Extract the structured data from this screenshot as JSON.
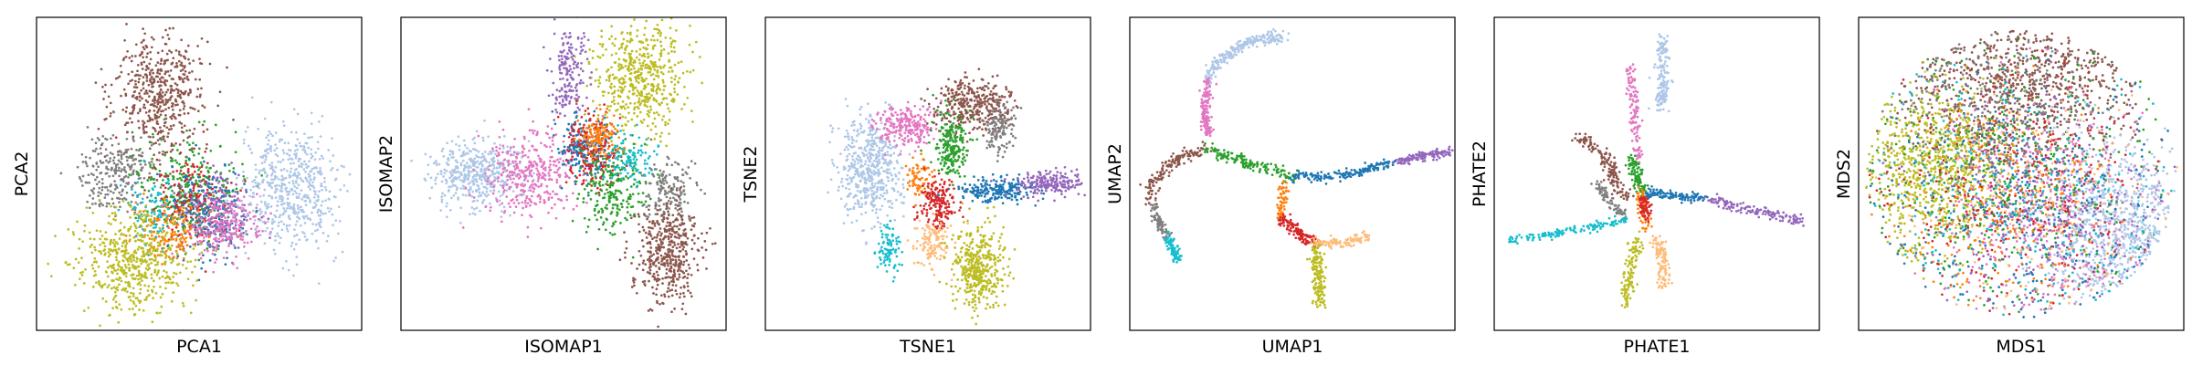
{
  "figure": {
    "palette": [
      "#1f77b4",
      "#ff7f0e",
      "#2ca02c",
      "#d62728",
      "#9467bd",
      "#8c564b",
      "#e377c2",
      "#7f7f7f",
      "#bcbd22",
      "#17becf",
      "#aec7e8",
      "#ffbb78"
    ]
  },
  "chart_data": [
    {
      "type": "scatter",
      "xlabel": "PCA1",
      "ylabel": "PCA2",
      "ticks": "none",
      "clusters": [
        {
          "color": "#8c564b",
          "center": [
            0.38,
            0.25
          ],
          "spread": [
            0.07,
            0.1
          ],
          "n": 520
        },
        {
          "color": "#7f7f7f",
          "center": [
            0.25,
            0.5
          ],
          "spread": [
            0.06,
            0.06
          ],
          "n": 260
        },
        {
          "color": "#2ca02c",
          "center": [
            0.47,
            0.55
          ],
          "spread": [
            0.08,
            0.08
          ],
          "n": 300
        },
        {
          "color": "#1f77b4",
          "center": [
            0.52,
            0.62
          ],
          "spread": [
            0.06,
            0.07
          ],
          "n": 260
        },
        {
          "color": "#d62728",
          "center": [
            0.48,
            0.58
          ],
          "spread": [
            0.06,
            0.07
          ],
          "n": 160
        },
        {
          "color": "#9467bd",
          "center": [
            0.56,
            0.62
          ],
          "spread": [
            0.05,
            0.06
          ],
          "n": 160
        },
        {
          "color": "#e377c2",
          "center": [
            0.58,
            0.66
          ],
          "spread": [
            0.06,
            0.06
          ],
          "n": 220
        },
        {
          "color": "#ff7f0e",
          "center": [
            0.4,
            0.68
          ],
          "spread": [
            0.05,
            0.05
          ],
          "n": 140
        },
        {
          "color": "#17becf",
          "center": [
            0.35,
            0.62
          ],
          "spread": [
            0.04,
            0.05
          ],
          "n": 80
        },
        {
          "color": "#bcbd22",
          "center": [
            0.3,
            0.78
          ],
          "spread": [
            0.08,
            0.08
          ],
          "n": 560
        },
        {
          "color": "#aec7e8",
          "center": [
            0.78,
            0.55
          ],
          "spread": [
            0.07,
            0.1
          ],
          "n": 560
        }
      ]
    },
    {
      "type": "scatter",
      "xlabel": "ISOMAP1",
      "ylabel": "ISOMAP2",
      "ticks": "none",
      "clusters": [
        {
          "color": "#bcbd22",
          "center": [
            0.74,
            0.2
          ],
          "spread": [
            0.07,
            0.08
          ],
          "n": 520
        },
        {
          "color": "#9467bd",
          "center": [
            0.52,
            0.18
          ],
          "spread": [
            0.03,
            0.07
          ],
          "n": 180
        },
        {
          "color": "#aec7e8",
          "center": [
            0.23,
            0.5
          ],
          "spread": [
            0.07,
            0.05
          ],
          "n": 460
        },
        {
          "color": "#e377c2",
          "center": [
            0.4,
            0.5
          ],
          "spread": [
            0.07,
            0.07
          ],
          "n": 360
        },
        {
          "color": "#1f77b4",
          "center": [
            0.57,
            0.42
          ],
          "spread": [
            0.04,
            0.05
          ],
          "n": 220
        },
        {
          "color": "#d62728",
          "center": [
            0.59,
            0.42
          ],
          "spread": [
            0.04,
            0.06
          ],
          "n": 180
        },
        {
          "color": "#2ca02c",
          "center": [
            0.65,
            0.55
          ],
          "spread": [
            0.05,
            0.07
          ],
          "n": 240
        },
        {
          "color": "#ff7f0e",
          "center": [
            0.61,
            0.38
          ],
          "spread": [
            0.03,
            0.04
          ],
          "n": 120
        },
        {
          "color": "#17becf",
          "center": [
            0.7,
            0.45
          ],
          "spread": [
            0.04,
            0.04
          ],
          "n": 100
        },
        {
          "color": "#7f7f7f",
          "center": [
            0.82,
            0.55
          ],
          "spread": [
            0.04,
            0.05
          ],
          "n": 160
        },
        {
          "color": "#8c564b",
          "center": [
            0.82,
            0.75
          ],
          "spread": [
            0.05,
            0.08
          ],
          "n": 440
        }
      ]
    },
    {
      "type": "scatter",
      "xlabel": "TSNE1",
      "ylabel": "TSNE2",
      "ticks": "none",
      "clusters": [
        {
          "color": "#aec7e8",
          "center": [
            0.32,
            0.48
          ],
          "spread": [
            0.05,
            0.08
          ],
          "n": 520
        },
        {
          "color": "#e377c2",
          "center": [
            0.43,
            0.35
          ],
          "spread": [
            0.05,
            0.03
          ],
          "n": 240
        },
        {
          "color": "#8c564b",
          "center": [
            0.64,
            0.28
          ],
          "spread": [
            0.06,
            0.04
          ],
          "n": 360
        },
        {
          "color": "#7f7f7f",
          "center": [
            0.72,
            0.36
          ],
          "spread": [
            0.02,
            0.04
          ],
          "n": 120
        },
        {
          "color": "#2ca02c",
          "center": [
            0.57,
            0.41
          ],
          "spread": [
            0.03,
            0.05
          ],
          "n": 220
        },
        {
          "color": "#1f77b4",
          "center": [
            0.71,
            0.55
          ],
          "spread": [
            0.06,
            0.02
          ],
          "n": 220
        },
        {
          "color": "#9467bd",
          "center": [
            0.87,
            0.53
          ],
          "spread": [
            0.05,
            0.02
          ],
          "n": 200
        },
        {
          "color": "#ff7f0e",
          "center": [
            0.47,
            0.52
          ],
          "spread": [
            0.02,
            0.03
          ],
          "n": 80
        },
        {
          "color": "#d62728",
          "center": [
            0.53,
            0.6
          ],
          "spread": [
            0.03,
            0.04
          ],
          "n": 180
        },
        {
          "color": "#ffbb78",
          "center": [
            0.51,
            0.72
          ],
          "spread": [
            0.03,
            0.04
          ],
          "n": 120
        },
        {
          "color": "#17becf",
          "center": [
            0.38,
            0.73
          ],
          "spread": [
            0.02,
            0.04
          ],
          "n": 90
        },
        {
          "color": "#bcbd22",
          "center": [
            0.65,
            0.8
          ],
          "spread": [
            0.04,
            0.07
          ],
          "n": 420
        }
      ]
    },
    {
      "type": "scatter",
      "xlabel": "UMAP1",
      "ylabel": "UMAP2",
      "ticks": "none",
      "paths": [
        {
          "color": "#aec7e8",
          "points": [
            [
              0.47,
              0.06
            ],
            [
              0.36,
              0.08
            ],
            [
              0.27,
              0.14
            ],
            [
              0.24,
              0.2
            ]
          ],
          "n": 220,
          "jitter": 0.01
        },
        {
          "color": "#e377c2",
          "points": [
            [
              0.24,
              0.2
            ],
            [
              0.23,
              0.28
            ],
            [
              0.24,
              0.38
            ]
          ],
          "n": 140,
          "jitter": 0.008
        },
        {
          "color": "#8c564b",
          "points": [
            [
              0.22,
              0.42
            ],
            [
              0.12,
              0.47
            ],
            [
              0.06,
              0.54
            ],
            [
              0.07,
              0.6
            ]
          ],
          "n": 160,
          "jitter": 0.01
        },
        {
          "color": "#7f7f7f",
          "points": [
            [
              0.07,
              0.6
            ],
            [
              0.09,
              0.66
            ],
            [
              0.12,
              0.7
            ]
          ],
          "n": 80,
          "jitter": 0.008
        },
        {
          "color": "#17becf",
          "points": [
            [
              0.12,
              0.7
            ],
            [
              0.14,
              0.75
            ],
            [
              0.14,
              0.78
            ]
          ],
          "n": 80,
          "jitter": 0.008
        },
        {
          "color": "#2ca02c",
          "points": [
            [
              0.24,
              0.42
            ],
            [
              0.35,
              0.46
            ],
            [
              0.45,
              0.49
            ],
            [
              0.5,
              0.51
            ]
          ],
          "n": 160,
          "jitter": 0.01
        },
        {
          "color": "#1f77b4",
          "points": [
            [
              0.5,
              0.51
            ],
            [
              0.62,
              0.51
            ],
            [
              0.72,
              0.49
            ],
            [
              0.82,
              0.46
            ]
          ],
          "n": 180,
          "jitter": 0.008
        },
        {
          "color": "#9467bd",
          "points": [
            [
              0.82,
              0.46
            ],
            [
              0.92,
              0.44
            ],
            [
              0.99,
              0.43
            ]
          ],
          "n": 130,
          "jitter": 0.007
        },
        {
          "color": "#ff7f0e",
          "points": [
            [
              0.47,
              0.53
            ],
            [
              0.47,
              0.6
            ],
            [
              0.46,
              0.64
            ]
          ],
          "n": 60,
          "jitter": 0.008
        },
        {
          "color": "#d62728",
          "points": [
            [
              0.47,
              0.64
            ],
            [
              0.52,
              0.69
            ],
            [
              0.57,
              0.72
            ]
          ],
          "n": 130,
          "jitter": 0.01
        },
        {
          "color": "#ffbb78",
          "points": [
            [
              0.57,
              0.72
            ],
            [
              0.66,
              0.72
            ],
            [
              0.74,
              0.7
            ]
          ],
          "n": 110,
          "jitter": 0.008
        },
        {
          "color": "#bcbd22",
          "points": [
            [
              0.57,
              0.74
            ],
            [
              0.58,
              0.82
            ],
            [
              0.59,
              0.92
            ]
          ],
          "n": 160,
          "jitter": 0.01
        }
      ]
    },
    {
      "type": "scatter",
      "xlabel": "PHATE1",
      "ylabel": "PHATE2",
      "ticks": "none",
      "paths": [
        {
          "color": "#aec7e8",
          "points": [
            [
              0.52,
              0.06
            ],
            [
              0.52,
              0.18
            ],
            [
              0.51,
              0.3
            ]
          ],
          "n": 160,
          "jitter": 0.01
        },
        {
          "color": "#e377c2",
          "points": [
            [
              0.42,
              0.16
            ],
            [
              0.43,
              0.3
            ],
            [
              0.44,
              0.45
            ]
          ],
          "n": 120,
          "jitter": 0.008
        },
        {
          "color": "#8c564b",
          "points": [
            [
              0.25,
              0.38
            ],
            [
              0.32,
              0.42
            ],
            [
              0.36,
              0.48
            ],
            [
              0.38,
              0.55
            ],
            [
              0.42,
              0.58
            ]
          ],
          "n": 160,
          "jitter": 0.01
        },
        {
          "color": "#7f7f7f",
          "points": [
            [
              0.31,
              0.52
            ],
            [
              0.36,
              0.6
            ],
            [
              0.4,
              0.63
            ]
          ],
          "n": 80,
          "jitter": 0.008
        },
        {
          "color": "#2ca02c",
          "points": [
            [
              0.42,
              0.45
            ],
            [
              0.44,
              0.52
            ],
            [
              0.46,
              0.56
            ]
          ],
          "n": 110,
          "jitter": 0.01
        },
        {
          "color": "#1f77b4",
          "points": [
            [
              0.46,
              0.56
            ],
            [
              0.56,
              0.57
            ],
            [
              0.66,
              0.58
            ]
          ],
          "n": 120,
          "jitter": 0.008
        },
        {
          "color": "#9467bd",
          "points": [
            [
              0.66,
              0.58
            ],
            [
              0.8,
              0.62
            ],
            [
              0.95,
              0.65
            ]
          ],
          "n": 140,
          "jitter": 0.008
        },
        {
          "color": "#17becf",
          "points": [
            [
              0.4,
              0.65
            ],
            [
              0.25,
              0.68
            ],
            [
              0.05,
              0.71
            ]
          ],
          "n": 140,
          "jitter": 0.007
        },
        {
          "color": "#ff7f0e",
          "points": [
            [
              0.45,
              0.55
            ],
            [
              0.46,
              0.62
            ],
            [
              0.47,
              0.68
            ]
          ],
          "n": 60,
          "jitter": 0.008
        },
        {
          "color": "#d62728",
          "points": [
            [
              0.46,
              0.58
            ],
            [
              0.47,
              0.64
            ]
          ],
          "n": 60,
          "jitter": 0.008
        },
        {
          "color": "#ffbb78",
          "points": [
            [
              0.5,
              0.7
            ],
            [
              0.52,
              0.8
            ],
            [
              0.52,
              0.86
            ]
          ],
          "n": 110,
          "jitter": 0.01
        },
        {
          "color": "#bcbd22",
          "points": [
            [
              0.44,
              0.7
            ],
            [
              0.42,
              0.8
            ],
            [
              0.4,
              0.92
            ]
          ],
          "n": 120,
          "jitter": 0.01
        }
      ]
    },
    {
      "type": "scatter",
      "xlabel": "MDS1",
      "ylabel": "MDS2",
      "ticks": "none",
      "disc": {
        "center": [
          0.5,
          0.5
        ],
        "radius": [
          0.48,
          0.46
        ]
      },
      "clusters": [
        {
          "color": "#8c564b",
          "center": [
            0.5,
            0.22
          ],
          "spread": [
            0.17,
            0.12
          ],
          "n": 800
        },
        {
          "color": "#bcbd22",
          "center": [
            0.24,
            0.48
          ],
          "spread": [
            0.11,
            0.13
          ],
          "n": 850
        },
        {
          "color": "#aec7e8",
          "center": [
            0.78,
            0.66
          ],
          "spread": [
            0.11,
            0.13
          ],
          "n": 850
        },
        {
          "color": "#7f7f7f",
          "center": [
            0.4,
            0.3
          ],
          "spread": [
            0.15,
            0.12
          ],
          "n": 300
        },
        {
          "color": "#e377c2",
          "center": [
            0.58,
            0.62
          ],
          "spread": [
            0.15,
            0.18
          ],
          "n": 380
        },
        {
          "color": "#2ca02c",
          "center": [
            0.48,
            0.52
          ],
          "spread": [
            0.2,
            0.18
          ],
          "n": 360
        },
        {
          "color": "#1f77b4",
          "center": [
            0.5,
            0.56
          ],
          "spread": [
            0.2,
            0.18
          ],
          "n": 360
        },
        {
          "color": "#d62728",
          "center": [
            0.48,
            0.56
          ],
          "spread": [
            0.18,
            0.18
          ],
          "n": 300
        },
        {
          "color": "#9467bd",
          "center": [
            0.55,
            0.6
          ],
          "spread": [
            0.18,
            0.18
          ],
          "n": 300
        },
        {
          "color": "#ff7f0e",
          "center": [
            0.45,
            0.62
          ],
          "spread": [
            0.18,
            0.18
          ],
          "n": 240
        },
        {
          "color": "#17becf",
          "center": [
            0.5,
            0.56
          ],
          "spread": [
            0.22,
            0.2
          ],
          "n": 240
        },
        {
          "color": "#ffbb78",
          "center": [
            0.52,
            0.6
          ],
          "spread": [
            0.2,
            0.18
          ],
          "n": 160
        }
      ]
    }
  ]
}
